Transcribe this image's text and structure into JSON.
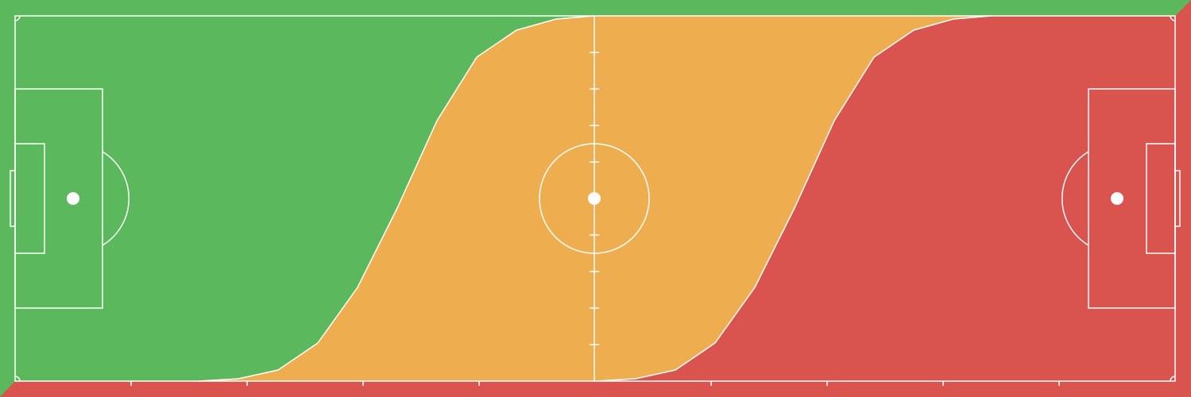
{
  "zones": [
    {
      "color": "#5cb85c"
    },
    {
      "color": "#eead4e"
    },
    {
      "color": "#d9534f"
    }
  ]
}
